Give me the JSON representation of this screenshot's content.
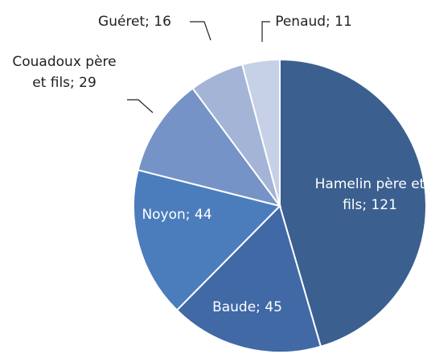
{
  "chart_data": {
    "type": "pie",
    "values": [
      121,
      45,
      44,
      29,
      16,
      11
    ],
    "value_labels": [
      "Hamelin père et fils; 121",
      "Baude; 45",
      "Noyon; 44",
      "Couadoux père et fils; 29",
      "Guéret; 16",
      "Penaud; 11"
    ],
    "colors": [
      "#3b5f8f",
      "#4069a6",
      "#4b7dbd",
      "#7593c6",
      "#a3b4d7",
      "#c6d0e7"
    ]
  }
}
